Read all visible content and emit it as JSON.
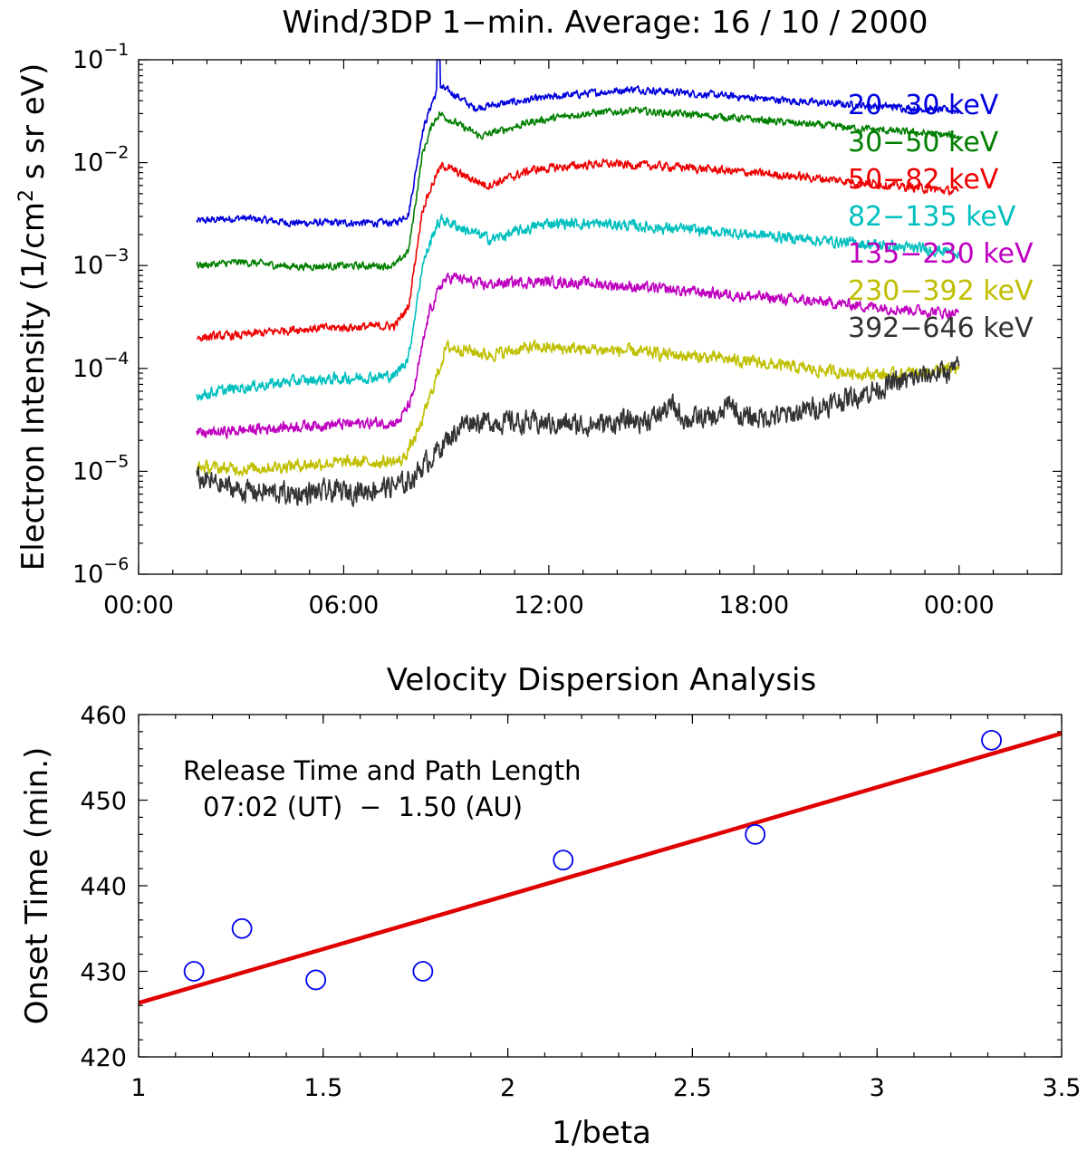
{
  "chart_data": [
    {
      "type": "line",
      "title": "Wind/3DP 1−min. Average: 16 / 10 / 2000",
      "ylabel": "Electron Intensity (1/cm2 s sr eV)",
      "ylabel_parts": {
        "before": "Electron Intensity (1/cm",
        "sup": "2",
        "after": " s sr eV)"
      },
      "xlabel": "",
      "yscale": "log",
      "ylim": [
        1e-06,
        0.1
      ],
      "xlim_hours": [
        0,
        27
      ],
      "x_ticks": [
        {
          "hours": 0,
          "label": "00:00"
        },
        {
          "hours": 6,
          "label": "06:00"
        },
        {
          "hours": 12,
          "label": "12:00"
        },
        {
          "hours": 18,
          "label": "18:00"
        },
        {
          "hours": 24,
          "label": "00:00"
        }
      ],
      "y_ticks": [
        {
          "exp": -1,
          "base": "10",
          "sup": "−1"
        },
        {
          "exp": -2,
          "base": "10",
          "sup": "−2"
        },
        {
          "exp": -3,
          "base": "10",
          "sup": "−3"
        },
        {
          "exp": -4,
          "base": "10",
          "sup": "−4"
        },
        {
          "exp": -5,
          "base": "10",
          "sup": "−5"
        },
        {
          "exp": -6,
          "base": "10",
          "sup": "−6"
        }
      ],
      "series": [
        {
          "name": "20−30 keV",
          "color": "#0000dd",
          "noise": 0.03,
          "spike": 1.0,
          "points": [
            [
              1.7,
              0.0027
            ],
            [
              3.0,
              0.0029
            ],
            [
              4.5,
              0.0026
            ],
            [
              7.5,
              0.0026
            ],
            [
              7.9,
              0.0032
            ],
            [
              8.3,
              0.02
            ],
            [
              8.6,
              0.04
            ],
            [
              8.8,
              0.055
            ],
            [
              9.3,
              0.045
            ],
            [
              9.8,
              0.034
            ],
            [
              11.0,
              0.039
            ],
            [
              12.5,
              0.045
            ],
            [
              14.5,
              0.052
            ],
            [
              17.0,
              0.045
            ],
            [
              20.0,
              0.038
            ],
            [
              24.0,
              0.032
            ]
          ]
        },
        {
          "name": "30−50 keV",
          "color": "#007f00",
          "noise": 0.03,
          "spike": 0,
          "points": [
            [
              1.7,
              0.001
            ],
            [
              3.0,
              0.00108
            ],
            [
              4.5,
              0.00098
            ],
            [
              7.5,
              0.001
            ],
            [
              7.9,
              0.0014
            ],
            [
              8.3,
              0.012
            ],
            [
              8.6,
              0.024
            ],
            [
              8.8,
              0.03
            ],
            [
              9.3,
              0.024
            ],
            [
              10.0,
              0.018
            ],
            [
              11.5,
              0.025
            ],
            [
              13.0,
              0.03
            ],
            [
              14.5,
              0.032
            ],
            [
              17.0,
              0.028
            ],
            [
              20.0,
              0.023
            ],
            [
              24.0,
              0.018
            ]
          ]
        },
        {
          "name": "50−82 keV",
          "color": "#ee0000",
          "noise": 0.035,
          "spike": 0,
          "points": [
            [
              1.7,
              0.0002
            ],
            [
              3.0,
              0.00021
            ],
            [
              4.5,
              0.00024
            ],
            [
              7.5,
              0.00026
            ],
            [
              7.9,
              0.0004
            ],
            [
              8.3,
              0.0035
            ],
            [
              8.7,
              0.0075
            ],
            [
              8.9,
              0.0095
            ],
            [
              9.5,
              0.0075
            ],
            [
              10.2,
              0.006
            ],
            [
              11.5,
              0.0085
            ],
            [
              13.5,
              0.0098
            ],
            [
              16.0,
              0.009
            ],
            [
              20.0,
              0.007
            ],
            [
              24.0,
              0.0052
            ]
          ]
        },
        {
          "name": "82−135 keV",
          "color": "#00bfbf",
          "noise": 0.045,
          "spike": 0,
          "points": [
            [
              1.7,
              5.5e-05
            ],
            [
              3.0,
              6.5e-05
            ],
            [
              4.5,
              7.5e-05
            ],
            [
              7.5,
              8.5e-05
            ],
            [
              7.9,
              0.00013
            ],
            [
              8.3,
              0.001
            ],
            [
              8.7,
              0.0024
            ],
            [
              8.9,
              0.0028
            ],
            [
              9.6,
              0.0022
            ],
            [
              10.3,
              0.0018
            ],
            [
              12.0,
              0.0026
            ],
            [
              14.0,
              0.0025
            ],
            [
              18.0,
              0.002
            ],
            [
              24.0,
              0.00135
            ]
          ]
        },
        {
          "name": "135−230 keV",
          "color": "#bf00bf",
          "noise": 0.045,
          "spike": 0,
          "points": [
            [
              1.7,
              2.3e-05
            ],
            [
              3.0,
              2.5e-05
            ],
            [
              5.0,
              2.8e-05
            ],
            [
              7.6,
              3e-05
            ],
            [
              8.0,
              5e-05
            ],
            [
              8.5,
              0.00035
            ],
            [
              8.9,
              0.0007
            ],
            [
              9.2,
              0.00078
            ],
            [
              10.0,
              0.00065
            ],
            [
              11.5,
              0.0007
            ],
            [
              13.0,
              0.00068
            ],
            [
              18.0,
              0.0005
            ],
            [
              24.0,
              0.00034
            ]
          ]
        },
        {
          "name": "230−392 keV",
          "color": "#bfbf00",
          "noise": 0.05,
          "spike": 0,
          "points": [
            [
              1.7,
              1.1e-05
            ],
            [
              3.0,
              1.05e-05
            ],
            [
              5.5,
              1.2e-05
            ],
            [
              7.7,
              1.25e-05
            ],
            [
              8.2,
              2.5e-05
            ],
            [
              8.7,
              8e-05
            ],
            [
              9.0,
              0.00016
            ],
            [
              9.5,
              0.000155
            ],
            [
              10.2,
              0.000135
            ],
            [
              11.5,
              0.00016
            ],
            [
              14.0,
              0.00015
            ],
            [
              17.0,
              0.000125
            ],
            [
              20.0,
              9.5e-05
            ],
            [
              22.0,
              8.6e-05
            ],
            [
              24.0,
              0.0001
            ]
          ]
        },
        {
          "name": "392−646 keV",
          "color": "#333333",
          "noise": 0.09,
          "spike": 0,
          "points": [
            [
              1.7,
              8.5e-06
            ],
            [
              3.0,
              6.5e-06
            ],
            [
              4.5,
              6e-06
            ],
            [
              6.5,
              6.5e-06
            ],
            [
              7.8,
              7.5e-06
            ],
            [
              8.4,
              1.2e-05
            ],
            [
              9.0,
              2e-05
            ],
            [
              9.6,
              3.1e-05
            ],
            [
              11.0,
              3e-05
            ],
            [
              13.0,
              2.8e-05
            ],
            [
              15.0,
              3.2e-05
            ],
            [
              15.6,
              4.3e-05
            ],
            [
              16.0,
              3.2e-05
            ],
            [
              17.0,
              3.3e-05
            ],
            [
              17.3,
              4.8e-05
            ],
            [
              17.6,
              3.3e-05
            ],
            [
              19.0,
              3.5e-05
            ],
            [
              20.5,
              4.8e-05
            ],
            [
              22.0,
              7e-05
            ],
            [
              23.0,
              8.5e-05
            ],
            [
              24.0,
              0.0001
            ]
          ]
        }
      ]
    },
    {
      "type": "scatter",
      "title": "Velocity Dispersion Analysis",
      "xlabel": "1/beta",
      "ylabel": "Onset Time (min.)",
      "xlim": [
        1,
        3.5
      ],
      "ylim": [
        420,
        460
      ],
      "x_ticks": [
        {
          "value": 1,
          "label": "1"
        },
        {
          "value": 1.5,
          "label": "1.5"
        },
        {
          "value": 2,
          "label": "2"
        },
        {
          "value": 2.5,
          "label": "2.5"
        },
        {
          "value": 3,
          "label": "3"
        },
        {
          "value": 3.5,
          "label": "3.5"
        }
      ],
      "y_ticks": [
        {
          "value": 420,
          "label": "420"
        },
        {
          "value": 430,
          "label": "430"
        },
        {
          "value": 440,
          "label": "440"
        },
        {
          "value": 450,
          "label": "450"
        },
        {
          "value": 460,
          "label": "460"
        }
      ],
      "points": [
        {
          "x": 1.15,
          "y": 430
        },
        {
          "x": 1.28,
          "y": 435
        },
        {
          "x": 1.48,
          "y": 429
        },
        {
          "x": 1.77,
          "y": 430
        },
        {
          "x": 2.15,
          "y": 443
        },
        {
          "x": 2.67,
          "y": 446
        },
        {
          "x": 3.31,
          "y": 457
        }
      ],
      "marker_color": "#0000ee",
      "fit_color": "#e00000",
      "fit": {
        "slope": 12.6,
        "intercept": 413.7
      },
      "annotation": {
        "line1": "Release Time and Path Length",
        "line2": "07:02 (UT)  −  1.50 (AU)"
      }
    }
  ]
}
